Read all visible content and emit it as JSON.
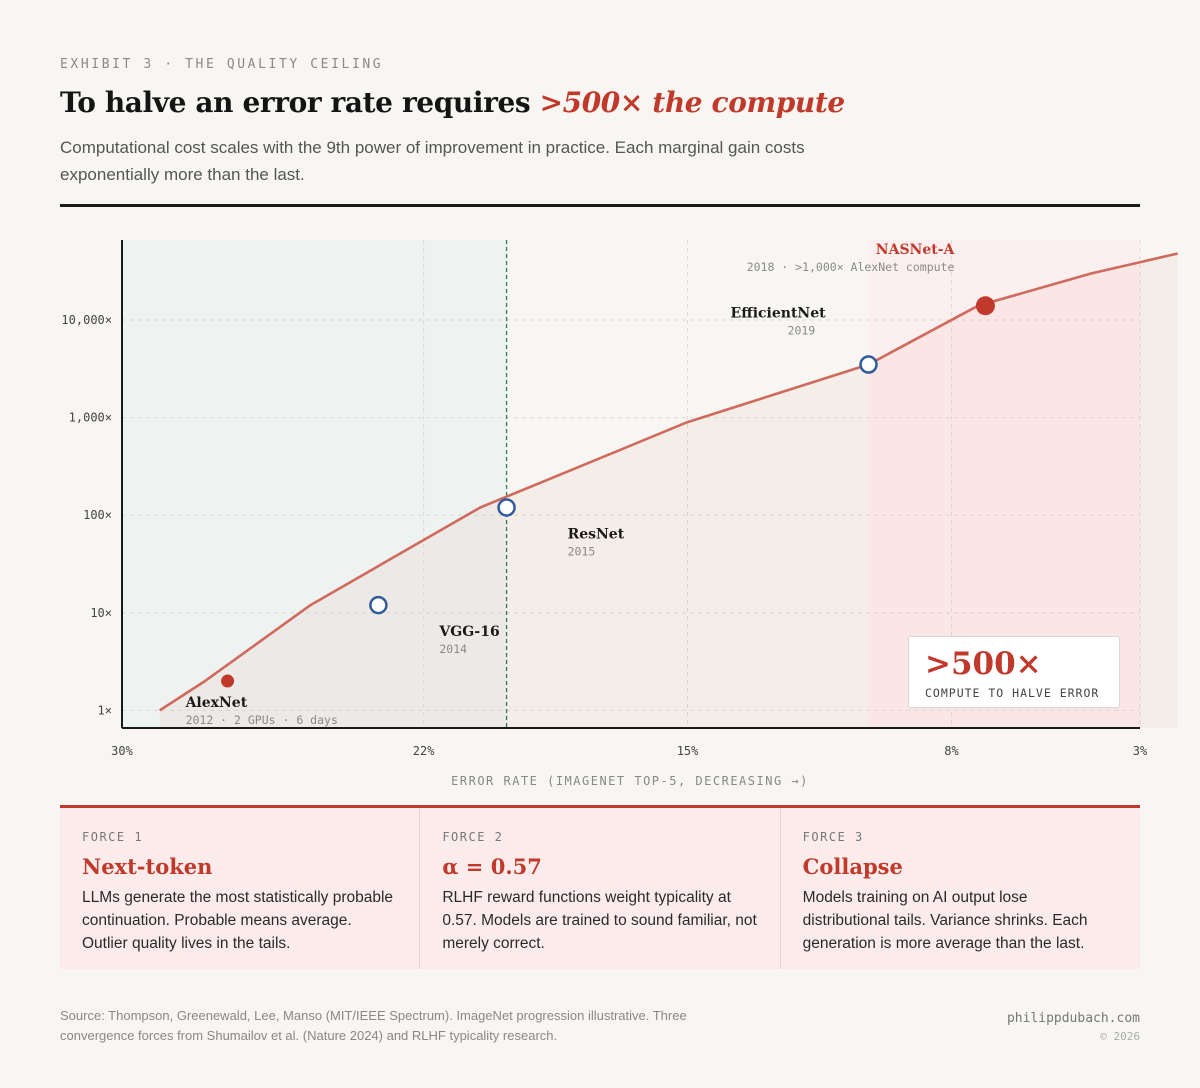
{
  "header": {
    "kicker": "EXHIBIT 3 · THE QUALITY CEILING",
    "title_main": "To halve an error rate requires ",
    "title_highlight": ">500× the compute",
    "subtitle": "Computational cost scales with the 9th power of improvement in practice. Each marginal gain costs exponentially more than the last."
  },
  "chart_data": {
    "type": "line",
    "xlabel": "ERROR RATE (IMAGENET TOP-5, DECREASING →)",
    "ylabel": "",
    "x_ticks": [
      "30%",
      "22%",
      "15%",
      "8%",
      "3%"
    ],
    "y_ticks": [
      "1×",
      "10×",
      "100×",
      "1,000×",
      "10,000×"
    ],
    "xlim": [
      30,
      3
    ],
    "ylim_log10": [
      -0.18,
      4.82
    ],
    "log_scale_y": true,
    "grid": true,
    "series": [
      {
        "x": [
          29,
          27.8,
          25,
          20.5,
          15,
          10.2,
          7.3,
          4.3,
          2
        ],
        "y": [
          1,
          2,
          12,
          120,
          900,
          3500,
          14000,
          30000,
          48000
        ]
      }
    ],
    "regions": [
      {
        "x_from": 30,
        "x_to": 19.8,
        "fill": "#eef2f1"
      },
      {
        "x_from": 10.2,
        "x_to": 3,
        "fill": "#fcefef"
      }
    ],
    "threshold_line_x": 19.8,
    "points": [
      {
        "name": "AlexNet",
        "sub": "2012 · 2 GPUs · 6 days",
        "x": 27.2,
        "y": 2,
        "style": "filled-small"
      },
      {
        "name": "VGG-16",
        "sub": "2014",
        "x": 23.2,
        "y": 12,
        "style": "hollow"
      },
      {
        "name": "ResNet",
        "sub": "2015",
        "x": 19.8,
        "y": 120,
        "style": "hollow"
      },
      {
        "name": "EfficientNet",
        "sub": "2019",
        "x": 10.2,
        "y": 3500,
        "style": "hollow"
      },
      {
        "name": "NASNet-A",
        "sub": "2018 · >1,000× AlexNet compute",
        "x": 7.1,
        "y": 14000,
        "style": "filled-large"
      }
    ],
    "colors": {
      "line": "#d06a5c",
      "marker_hollow": "#2f5c9b",
      "marker_filled": "#c0392b",
      "threshold": "#2e7d4f"
    }
  },
  "callout": {
    "value": ">500×",
    "label": "COMPUTE TO HALVE ERROR"
  },
  "forces": [
    {
      "label": "FORCE 1",
      "title": "Next-token",
      "body": "LLMs generate the most statistically probable continuation. Probable means average. Outlier quality lives in the tails."
    },
    {
      "label": "FORCE 2",
      "title": "α = 0.57",
      "body": "RLHF reward functions weight typicality at 0.57. Models are trained to sound familiar, not merely correct."
    },
    {
      "label": "FORCE 3",
      "title": "Collapse",
      "body": "Models training on AI output lose distributional tails. Variance shrinks. Each generation is more average than the last."
    }
  ],
  "footer": {
    "source": "Source: Thompson, Greenewald, Lee, Manso (MIT/IEEE Spectrum). ImageNet progression illustrative. Three convergence forces from Shumailov et al. (Nature 2024) and RLHF typicality research.",
    "site": "philippdubach.com",
    "copyright": "© 2026"
  }
}
